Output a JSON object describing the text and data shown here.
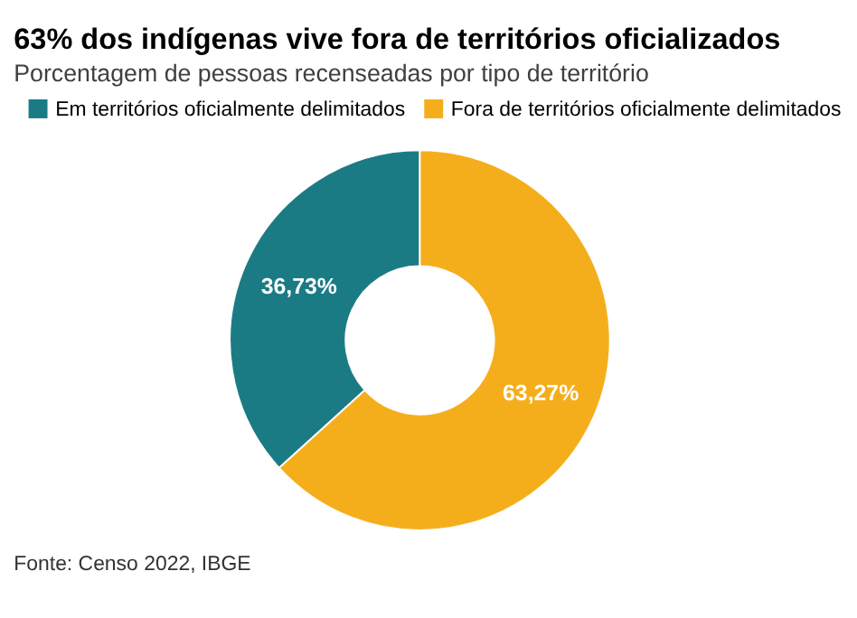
{
  "chart_data": {
    "type": "donut",
    "title": "63% dos indígenas vive fora de territórios oficializados",
    "subtitle": "Porcentagem de pessoas recenseadas por tipo de território",
    "categories": [
      "Em territórios oficialmente delimitados",
      "Fora de territórios oficialmente delimitados"
    ],
    "values": [
      36.73,
      63.27
    ],
    "colors": [
      "#1b7b85",
      "#f5ae1b"
    ],
    "value_labels": [
      "36,73%",
      "63,27%"
    ],
    "legend": "top left",
    "annotations": [
      "Fonte: Censo 2022, IBGE"
    ]
  }
}
